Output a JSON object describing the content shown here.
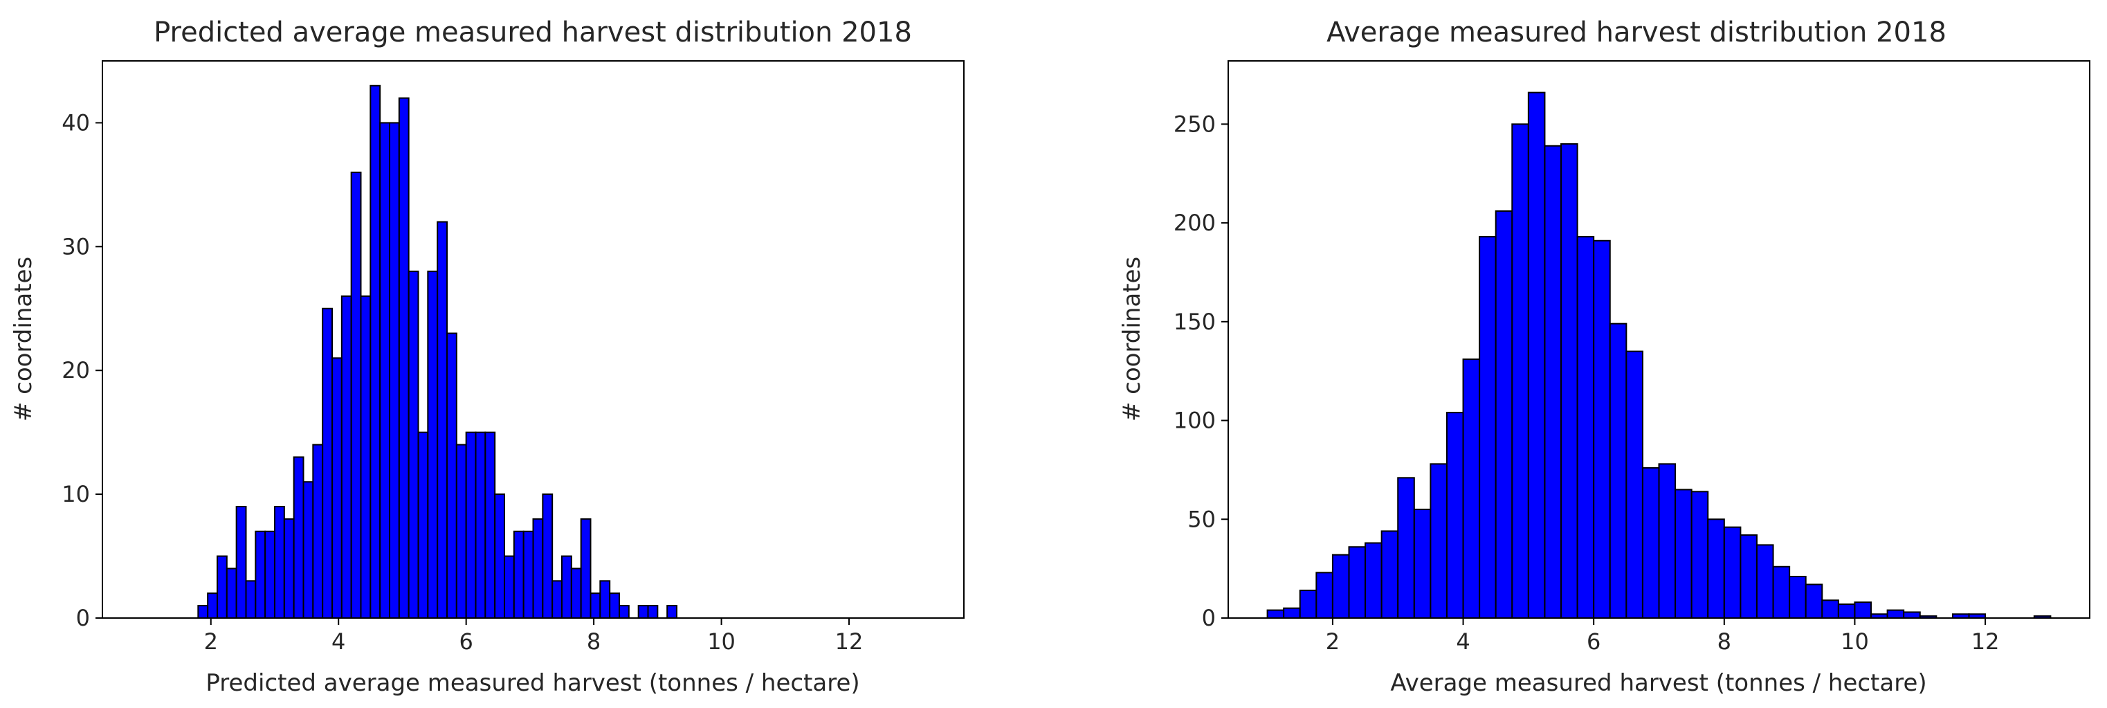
{
  "chart_data": [
    {
      "type": "bar",
      "title": "Predicted average measured harvest distribution 2018",
      "xlabel": "Predicted average measured harvest (tonnes / hectare)",
      "ylabel": "# coordinates",
      "xlim": [
        0.3,
        13.8
      ],
      "ylim": [
        0,
        45
      ],
      "xticks": [
        2,
        4,
        6,
        8,
        10,
        12
      ],
      "yticks": [
        0,
        10,
        20,
        30,
        40
      ],
      "bin_start": 1.8,
      "bin_width": 0.15,
      "values": [
        1,
        2,
        5,
        4,
        9,
        3,
        7,
        7,
        9,
        8,
        13,
        11,
        14,
        25,
        21,
        26,
        36,
        26,
        43,
        40,
        40,
        42,
        28,
        15,
        28,
        32,
        23,
        14,
        15,
        15,
        15,
        10,
        5,
        7,
        7,
        8,
        10,
        3,
        5,
        4,
        8,
        2,
        3,
        2,
        1,
        0,
        1,
        1,
        0,
        1
      ],
      "bar_color": "#0000ff",
      "edge_color": "#000000"
    },
    {
      "type": "bar",
      "title": "Average measured harvest distribution 2018",
      "xlabel": "Average measured harvest (tonnes / hectare)",
      "ylabel": "# coordinates",
      "xlim": [
        0.4,
        13.6
      ],
      "ylim": [
        0,
        282
      ],
      "xticks": [
        2,
        4,
        6,
        8,
        10,
        12
      ],
      "yticks": [
        0,
        50,
        100,
        150,
        200,
        250
      ],
      "bin_start": 1.0,
      "bin_width": 0.25,
      "values": [
        4,
        5,
        14,
        23,
        32,
        36,
        38,
        44,
        71,
        55,
        78,
        104,
        131,
        193,
        206,
        250,
        266,
        239,
        240,
        193,
        191,
        149,
        135,
        76,
        78,
        65,
        64,
        50,
        46,
        42,
        37,
        26,
        21,
        17,
        9,
        7,
        8,
        2,
        4,
        3,
        1,
        0,
        2,
        2,
        0,
        0,
        0,
        1
      ],
      "bar_color": "#0000ff",
      "edge_color": "#000000"
    }
  ]
}
